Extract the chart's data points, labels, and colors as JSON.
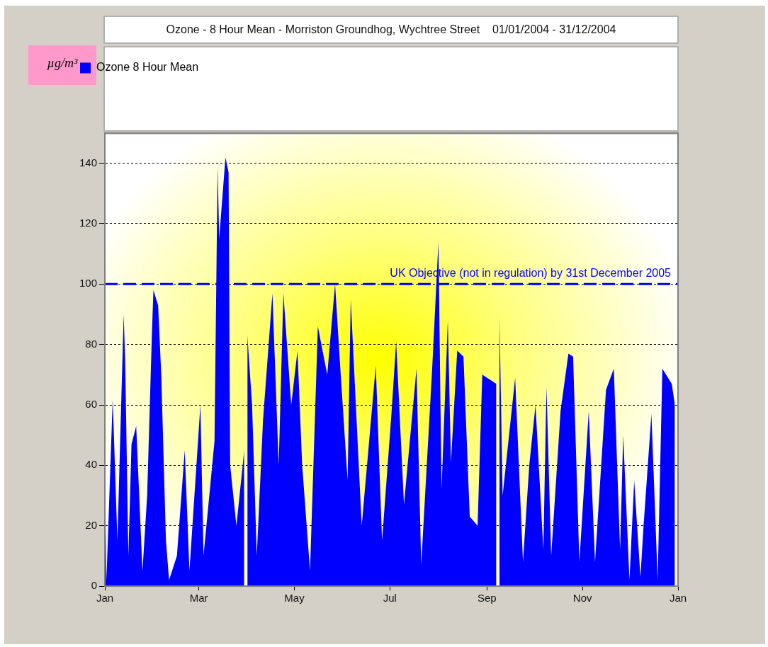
{
  "chart_data": {
    "type": "area",
    "title": "Ozone - 8 Hour Mean - Morriston Groundhog, Wychtree Street    01/01/2004 - 31/12/2004",
    "annotations": [
      "µg/m³"
    ],
    "legend": "top left",
    "grid": "y",
    "xlim": [
      "2004-01-01",
      "2005-01-01"
    ],
    "xticks": [
      {
        "value": "2004-01-01",
        "label": "Jan"
      },
      {
        "value": "2004-03-01",
        "label": "Mar"
      },
      {
        "value": "2004-05-01",
        "label": "May"
      },
      {
        "value": "2004-07-01",
        "label": "Jul"
      },
      {
        "value": "2004-09-01",
        "label": "Sep"
      },
      {
        "value": "2004-11-01",
        "label": "Nov"
      },
      {
        "value": "2005-01-01",
        "label": "Jan"
      }
    ],
    "ylim": [
      0,
      150
    ],
    "yticks": [
      0,
      20,
      40,
      60,
      80,
      100,
      120,
      140
    ],
    "ref_lines": [
      {
        "axis": "y",
        "value": 100,
        "label": "UK Objective (not in regulation) by 31st December 2005",
        "color": "#0000ff",
        "line_style": "dashed"
      }
    ],
    "x": [
      "2004-01-01",
      "2004-01-02",
      "2004-01-06",
      "2004-01-09",
      "2004-01-13",
      "2004-01-14",
      "2004-01-16",
      "2004-01-18",
      "2004-01-21",
      "2004-01-25",
      "2004-01-28",
      "2004-01-31",
      "2004-02-01",
      "2004-02-04",
      "2004-02-06",
      "2004-02-09",
      "2004-02-11",
      "2004-02-16",
      "2004-02-21",
      "2004-02-24",
      "2004-03-02",
      "2004-03-04",
      "2004-03-11",
      "2004-03-13",
      "2004-03-14",
      "2004-03-18",
      "2004-03-20",
      "2004-03-21",
      "2004-03-25",
      "2004-03-30",
      "2004-03-31",
      "2004-04-01",
      "2004-04-04",
      "2004-04-07",
      "2004-04-11",
      "2004-04-17",
      "2004-04-21",
      "2004-04-24",
      "2004-04-29",
      "2004-05-03",
      "2004-05-06",
      "2004-05-11",
      "2004-05-16",
      "2004-05-22",
      "2004-05-27",
      "2004-05-30",
      "2004-06-04",
      "2004-06-06",
      "2004-06-13",
      "2004-06-22",
      "2004-06-26",
      "2004-07-02",
      "2004-07-05",
      "2004-07-10",
      "2004-07-18",
      "2004-07-21",
      "2004-07-28",
      "2004-08-01",
      "2004-08-03",
      "2004-08-07",
      "2004-08-09",
      "2004-08-13",
      "2004-08-17",
      "2004-08-21",
      "2004-08-26",
      "2004-08-29",
      "2004-09-07",
      "2004-09-08",
      "2004-09-09",
      "2004-09-11",
      "2004-09-19",
      "2004-09-24",
      "2004-09-28",
      "2004-10-02",
      "2004-10-07",
      "2004-10-09",
      "2004-10-12",
      "2004-10-18",
      "2004-10-23",
      "2004-10-26",
      "2004-10-30",
      "2004-11-05",
      "2004-11-09",
      "2004-11-16",
      "2004-11-21",
      "2004-11-25",
      "2004-11-27",
      "2004-12-01",
      "2004-12-04",
      "2004-12-08",
      "2004-12-10",
      "2004-12-15",
      "2004-12-19",
      "2004-12-22",
      "2004-12-28",
      "2004-12-30"
    ],
    "series": [
      {
        "name": "Ozone 8 Hour Mean",
        "color": "#0000ff",
        "values": [
          40,
          2,
          62,
          15,
          90,
          74,
          10,
          47,
          53,
          5,
          30,
          83,
          98,
          93,
          70,
          15,
          2,
          10,
          45,
          5,
          60,
          10,
          48,
          139,
          115,
          142,
          137,
          40,
          20,
          45,
          null,
          83,
          60,
          10,
          55,
          97,
          40,
          97,
          60,
          78,
          40,
          5,
          86,
          70,
          100,
          75,
          35,
          95,
          20,
          73,
          15,
          57,
          81,
          27,
          72,
          7,
          72,
          114,
          32,
          88,
          41,
          78,
          76,
          23,
          20,
          70,
          67,
          null,
          89,
          30,
          69,
          8,
          40,
          60,
          12,
          66,
          10,
          58,
          77,
          76,
          8,
          58,
          8,
          65,
          72,
          12,
          50,
          2,
          35,
          3,
          20,
          57,
          2,
          72,
          67,
          60
        ]
      }
    ]
  }
}
